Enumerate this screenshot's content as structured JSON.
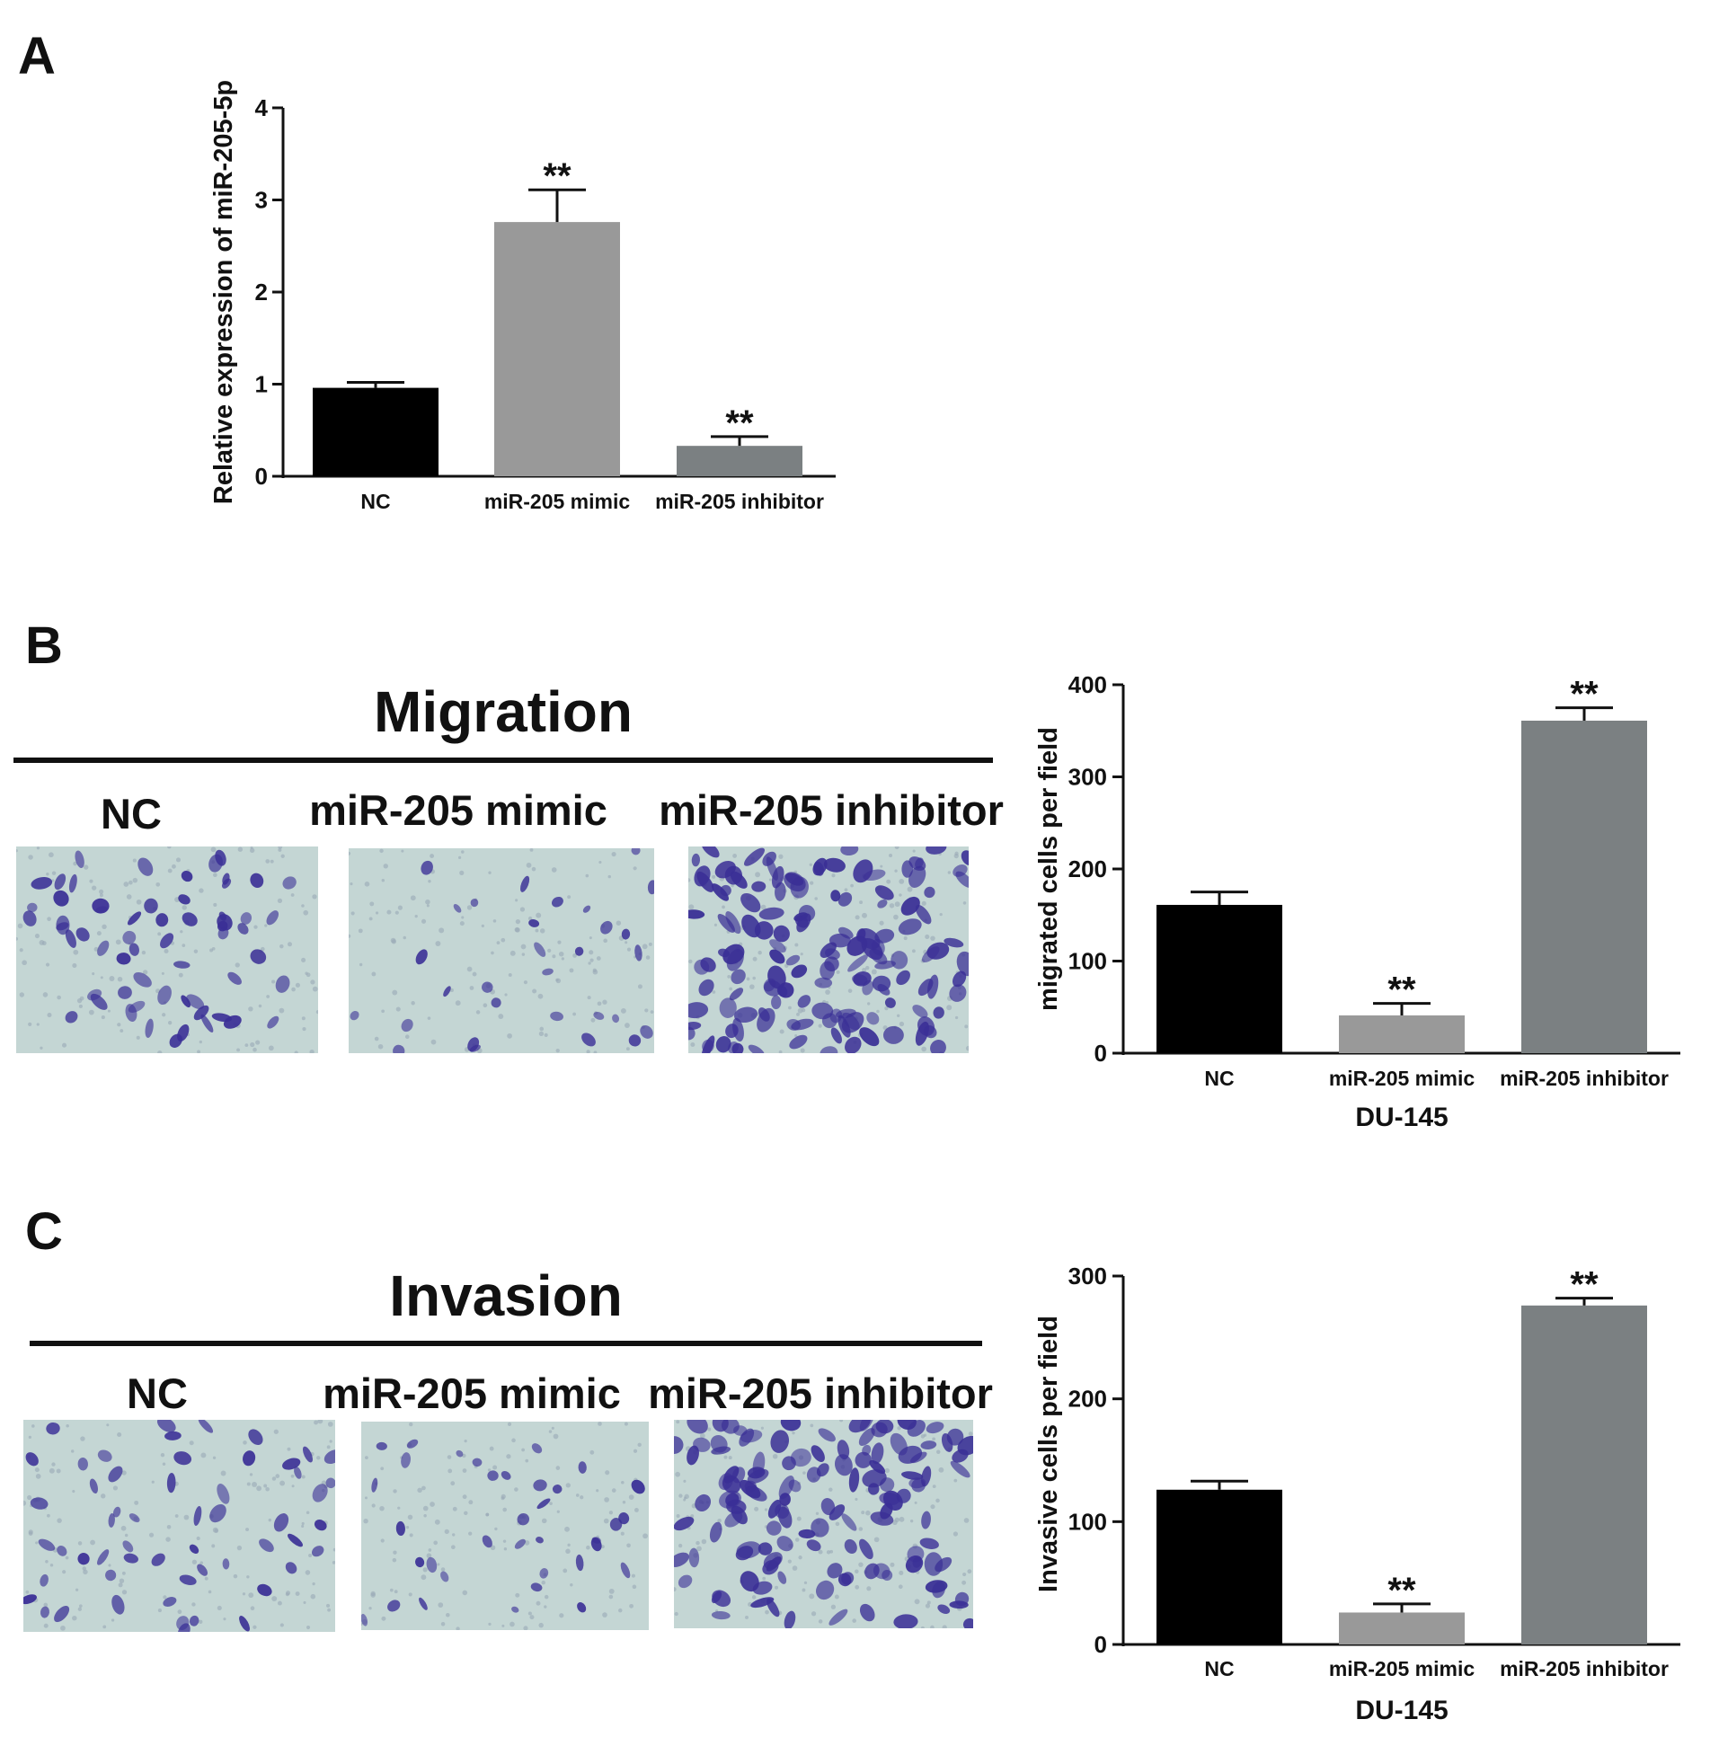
{
  "panels": {
    "a": {
      "letter": "A"
    },
    "b": {
      "letter": "B",
      "photo_title": "Migration",
      "photo_labels": [
        "NC",
        "miR-205 mimic",
        "miR-205 inhibitor"
      ]
    },
    "c": {
      "letter": "C",
      "photo_title": "Invasion",
      "photo_labels": [
        "NC",
        "miR-205 mimic",
        "miR-205 inhibitor"
      ]
    }
  },
  "colors": {
    "nc": "#000000",
    "mimic": "#999999",
    "inhibitor": "#7b8082",
    "micro_bg": "#c4d6d4",
    "stain": "#3a2f96"
  },
  "chart_data": [
    {
      "id": "a",
      "type": "bar",
      "categories": [
        "NC",
        "miR-205 mimic",
        "miR-205 inhibitor"
      ],
      "values": [
        0.96,
        2.76,
        0.33
      ],
      "errors": [
        0.06,
        0.35,
        0.1
      ],
      "annotations": [
        "",
        "**",
        "**"
      ],
      "title": "",
      "xlabel": "",
      "ylabel": "Relative expression of miR-205-5p",
      "ylim": [
        0,
        4
      ],
      "yticks": [
        0,
        1,
        2,
        3,
        4
      ],
      "grid": false
    },
    {
      "id": "b",
      "type": "bar",
      "categories": [
        "NC",
        "miR-205 mimic",
        "miR-205 inhibitor"
      ],
      "values": [
        161,
        41,
        361
      ],
      "errors": [
        14,
        13,
        14
      ],
      "annotations": [
        "",
        "**",
        "**"
      ],
      "title": "",
      "xlabel": "DU-145",
      "ylabel": "migrated cells per field",
      "ylim": [
        0,
        400
      ],
      "yticks": [
        0,
        100,
        200,
        300,
        400
      ],
      "grid": false
    },
    {
      "id": "c",
      "type": "bar",
      "categories": [
        "NC",
        "miR-205 mimic",
        "miR-205 inhibitor"
      ],
      "values": [
        126,
        26,
        276
      ],
      "errors": [
        7,
        7,
        6
      ],
      "annotations": [
        "",
        "**",
        "**"
      ],
      "title": "",
      "xlabel": "DU-145",
      "ylabel": "Invasive cells per field",
      "ylim": [
        0,
        300
      ],
      "yticks": [
        0,
        100,
        200,
        300
      ],
      "grid": false
    }
  ]
}
